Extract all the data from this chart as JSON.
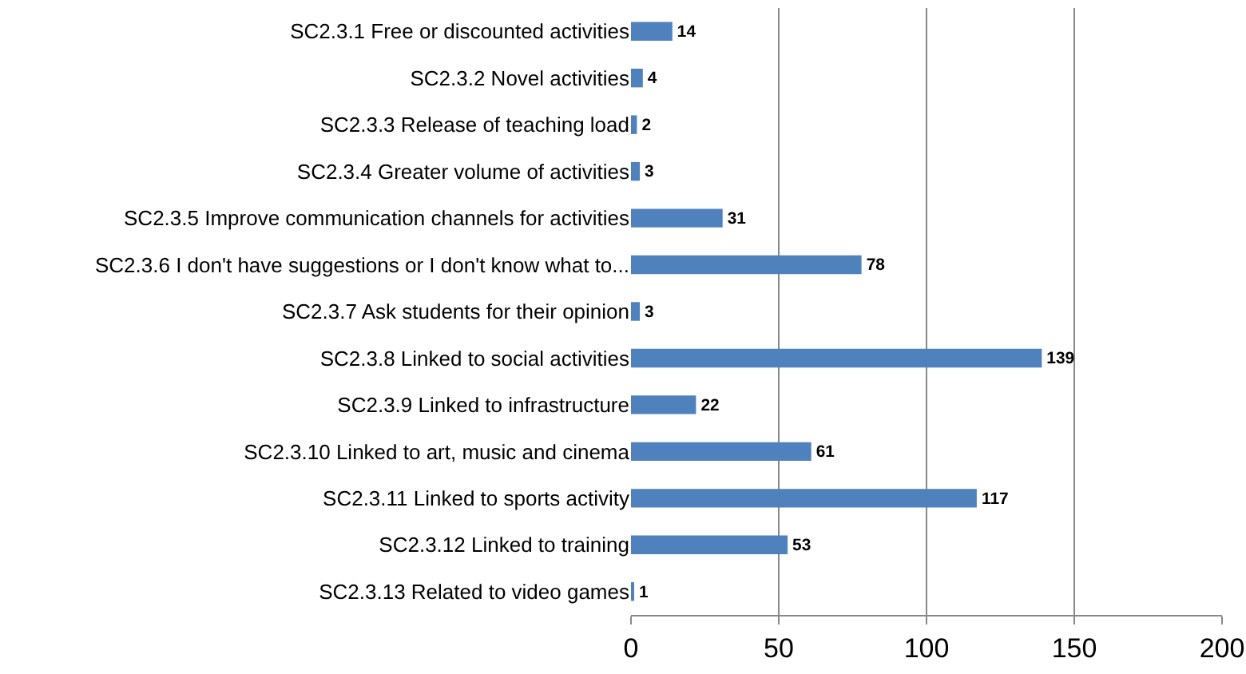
{
  "chart_data": {
    "type": "bar",
    "orientation": "horizontal",
    "categories": [
      "SC2.3.1 Free or discounted activities",
      "SC2.3.2 Novel activities",
      "SC2.3.3 Release of teaching load",
      "SC2.3.4 Greater volume of activities",
      "SC2.3.5 Improve communication channels for activities",
      "SC2.3.6 I don't have suggestions or I don't know what to...",
      "SC2.3.7 Ask students for their opinion",
      "SC2.3.8 Linked to social activities",
      "SC2.3.9 Linked to infrastructure",
      "SC2.3.10 Linked to art, music and cinema",
      "SC2.3.11 Linked to sports activity",
      "SC2.3.12 Linked to training",
      "SC2.3.13 Related to video games"
    ],
    "values": [
      14,
      4,
      2,
      3,
      31,
      78,
      3,
      139,
      22,
      61,
      117,
      53,
      1
    ],
    "color": "#4f81bd",
    "data_labels": true,
    "grid": "x",
    "xlim": [
      0,
      200
    ],
    "xticks": [
      0,
      50,
      100,
      150,
      200
    ]
  }
}
